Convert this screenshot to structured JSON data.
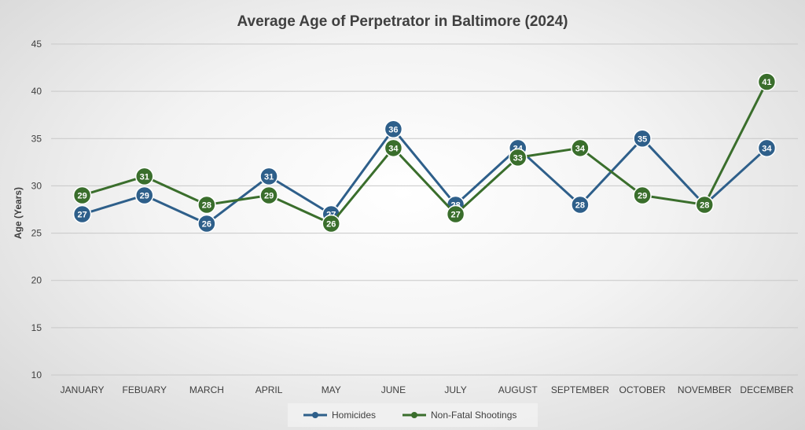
{
  "chart_data": {
    "type": "line",
    "title": "Average Age of Perpetrator in Baltimore (2024)",
    "xlabel": "",
    "ylabel": "Age (Years)",
    "ylim": [
      10,
      45
    ],
    "yticks": [
      10,
      15,
      20,
      25,
      30,
      35,
      40,
      45
    ],
    "grid": true,
    "legend": "bottom",
    "categories": [
      "JANUARY",
      "FEBUARY",
      "MARCH",
      "APRIL",
      "MAY",
      "JUNE",
      "JULY",
      "AUGUST",
      "SEPTEMBER",
      "OCTOBER",
      "NOVEMBER",
      "DECEMBER"
    ],
    "series": [
      {
        "name": "Homicides",
        "color": "#2e5f8a",
        "values": [
          27,
          29,
          26,
          31,
          27,
          36,
          28,
          34,
          28,
          35,
          28,
          34
        ]
      },
      {
        "name": "Non-Fatal Shootings",
        "color": "#3a6e2c",
        "values": [
          29,
          31,
          28,
          29,
          26,
          34,
          27,
          33,
          34,
          29,
          28,
          41
        ]
      }
    ]
  }
}
